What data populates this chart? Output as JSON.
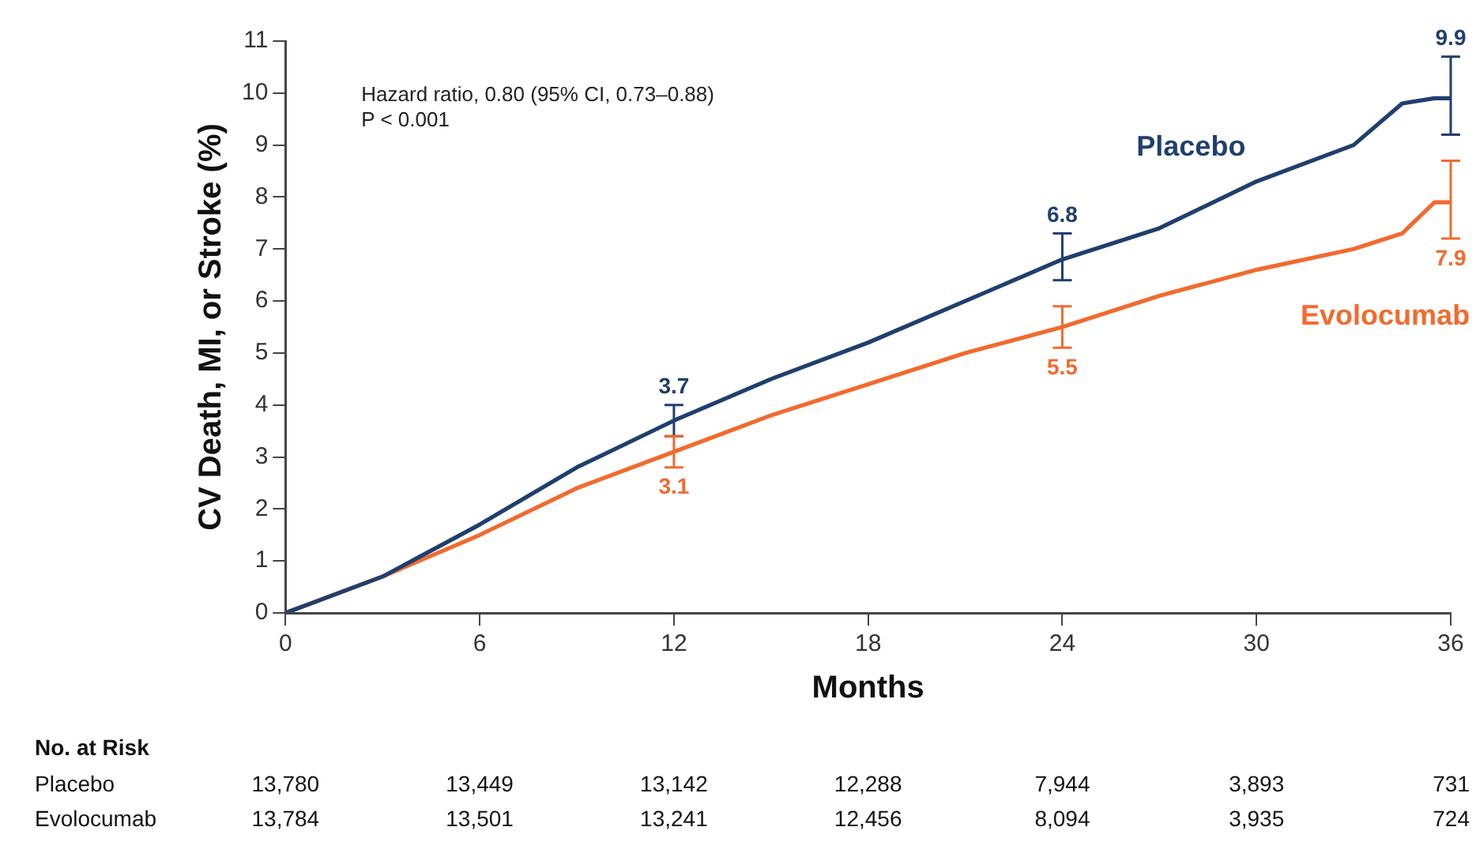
{
  "chart_data": {
    "type": "line",
    "xlabel": "Months",
    "ylabel": "CV Death, MI, or Stroke (%)",
    "xlim": [
      0,
      36
    ],
    "xticks": [
      0,
      6,
      12,
      18,
      24,
      30,
      36
    ],
    "ylim": [
      0,
      11
    ],
    "yticks": [
      0,
      1,
      2,
      3,
      4,
      5,
      6,
      7,
      8,
      9,
      10,
      11
    ],
    "grid": false,
    "legend": false,
    "marker": "none",
    "line_style": "solid",
    "series": [
      {
        "name": "Placebo",
        "color": "#1f3f6e",
        "x": [
          0,
          3,
          6,
          9,
          12,
          15,
          18,
          21,
          24,
          27,
          30,
          33,
          34.5,
          35.5,
          36
        ],
        "values": [
          0,
          0.7,
          1.7,
          2.8,
          3.7,
          4.5,
          5.2,
          6.0,
          6.8,
          7.4,
          8.3,
          9.0,
          9.8,
          9.9,
          9.9
        ],
        "errors": [
          null,
          null,
          null,
          null,
          [
            3.4,
            4.0
          ],
          null,
          null,
          null,
          [
            6.4,
            7.3
          ],
          null,
          null,
          null,
          null,
          null,
          [
            9.2,
            10.7
          ]
        ],
        "value_labels": [
          null,
          null,
          null,
          null,
          "3.7",
          null,
          null,
          null,
          "6.8",
          null,
          null,
          null,
          null,
          null,
          "9.9"
        ]
      },
      {
        "name": "Evolocumab",
        "color": "#f26a2e",
        "x": [
          0,
          3,
          6,
          9,
          12,
          15,
          18,
          21,
          24,
          27,
          30,
          33,
          34.5,
          35.5,
          36
        ],
        "values": [
          0,
          0.7,
          1.5,
          2.4,
          3.1,
          3.8,
          4.4,
          5.0,
          5.5,
          6.1,
          6.6,
          7.0,
          7.3,
          7.9,
          7.9
        ],
        "errors": [
          null,
          null,
          null,
          null,
          [
            2.8,
            3.4
          ],
          null,
          null,
          null,
          [
            5.1,
            5.9
          ],
          null,
          null,
          null,
          null,
          null,
          [
            7.2,
            8.7
          ]
        ],
        "value_labels": [
          null,
          null,
          null,
          null,
          "3.1",
          null,
          null,
          null,
          "5.5",
          null,
          null,
          null,
          null,
          null,
          "7.9"
        ]
      }
    ],
    "annotations": [
      "Hazard ratio, 0.80 (95% CI, 0.73–0.88)",
      "P < 0.001",
      "No. at Risk",
      "Placebo",
      "13,780",
      "13,449",
      "13,142",
      "12,288",
      "7,944",
      "3,893",
      "731",
      "Evolocumab",
      "13,784",
      "13,501",
      "13,241",
      "12,456",
      "8,094",
      "3,935",
      "724"
    ]
  }
}
